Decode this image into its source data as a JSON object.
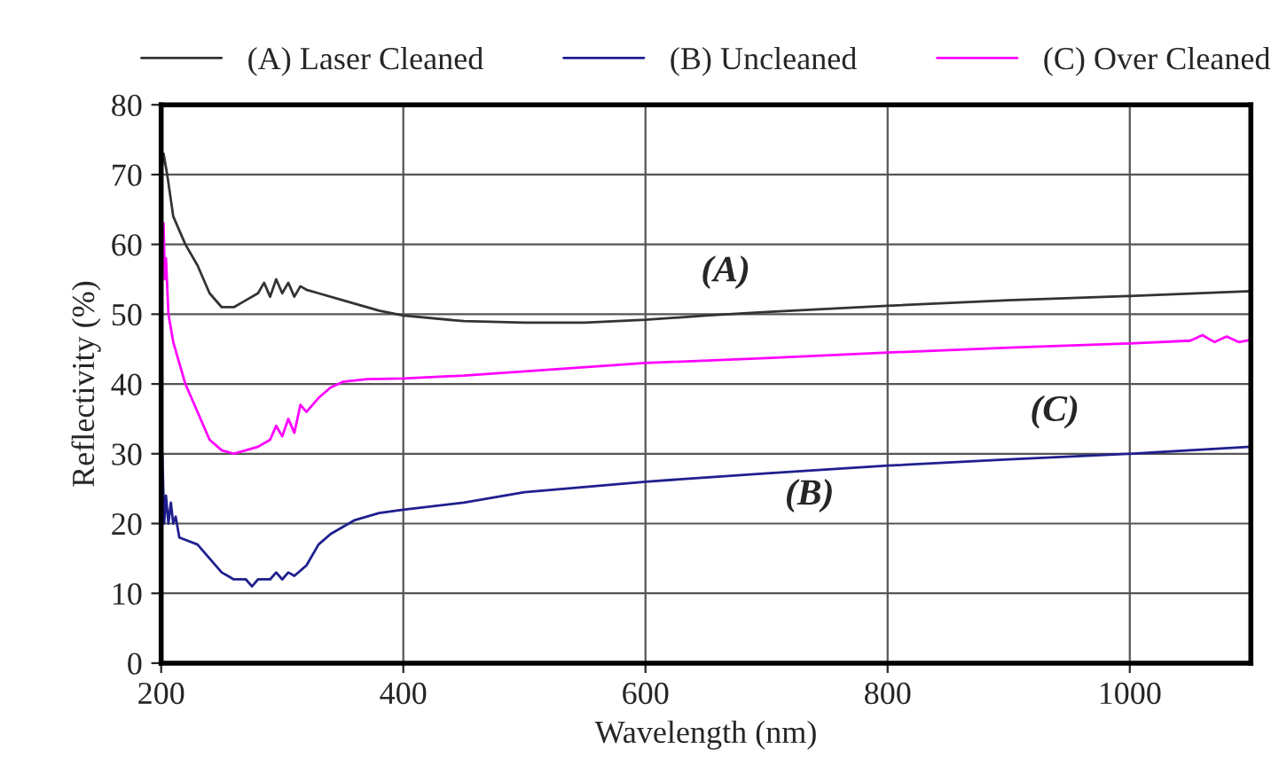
{
  "chart_data": {
    "type": "line",
    "xlabel": "Wavelength (nm)",
    "ylabel": "Reflectivity (%)",
    "xlim": [
      200,
      1100
    ],
    "xticks": [
      200,
      400,
      600,
      800,
      1000
    ],
    "ylim": [
      0,
      80
    ],
    "yticks": [
      0,
      10,
      20,
      30,
      40,
      50,
      60,
      70,
      80
    ],
    "grid": true,
    "legend": "top",
    "marker": "none",
    "line_style": "solid",
    "annotations": [
      "(A)",
      "(B)",
      "(C)"
    ],
    "series": [
      {
        "name": "(A) Laser Cleaned",
        "color": "#333333",
        "x": [
          200,
          202,
          205,
          210,
          215,
          220,
          230,
          240,
          250,
          260,
          270,
          280,
          285,
          290,
          295,
          300,
          305,
          310,
          315,
          320,
          330,
          350,
          380,
          400,
          450,
          500,
          550,
          600,
          650,
          700,
          800,
          900,
          1000,
          1100
        ],
        "values": [
          70,
          73,
          70,
          64,
          62,
          60,
          57,
          53,
          51,
          51,
          52,
          53,
          54.5,
          52.5,
          55,
          53,
          54.5,
          52.5,
          54,
          53.5,
          53,
          52,
          50.5,
          49.8,
          49,
          48.8,
          48.8,
          49.2,
          49.8,
          50.3,
          51.2,
          52,
          52.6,
          53.3
        ]
      },
      {
        "name": "(B) Uncleaned",
        "color": "#1f1f8f",
        "x": [
          201,
          202.5,
          204,
          206,
          208,
          210,
          212,
          215,
          230,
          240,
          250,
          260,
          270,
          275,
          280,
          290,
          295,
          300,
          305,
          310,
          320,
          330,
          340,
          360,
          380,
          400,
          450,
          500,
          600,
          700,
          800,
          900,
          1000,
          1100
        ],
        "values": [
          30,
          20,
          24,
          20,
          23,
          20,
          21,
          18,
          17,
          15,
          13,
          12,
          12,
          11,
          12,
          12,
          13,
          12,
          13,
          12.5,
          14,
          17,
          18.5,
          20.5,
          21.5,
          22,
          23,
          24.5,
          26,
          27.2,
          28.3,
          29.2,
          30,
          31
        ]
      },
      {
        "name": "(C) Over Cleaned",
        "color": "#ff00ff",
        "x": [
          202,
          203,
          204,
          206,
          210,
          220,
          230,
          240,
          250,
          260,
          270,
          280,
          290,
          295,
          300,
          305,
          310,
          315,
          320,
          330,
          340,
          350,
          370,
          400,
          450,
          500,
          600,
          700,
          800,
          900,
          1000,
          1050,
          1060,
          1070,
          1080,
          1090,
          1100
        ],
        "values": [
          63,
          55,
          58,
          50,
          46,
          40,
          36,
          32,
          30.5,
          30,
          30.5,
          31,
          32,
          34,
          32.5,
          35,
          33,
          37,
          36,
          38,
          39.5,
          40.3,
          40.7,
          40.8,
          41.2,
          41.8,
          43,
          43.7,
          44.5,
          45.2,
          45.8,
          46.2,
          47,
          46,
          46.8,
          46,
          46.3
        ]
      }
    ]
  }
}
